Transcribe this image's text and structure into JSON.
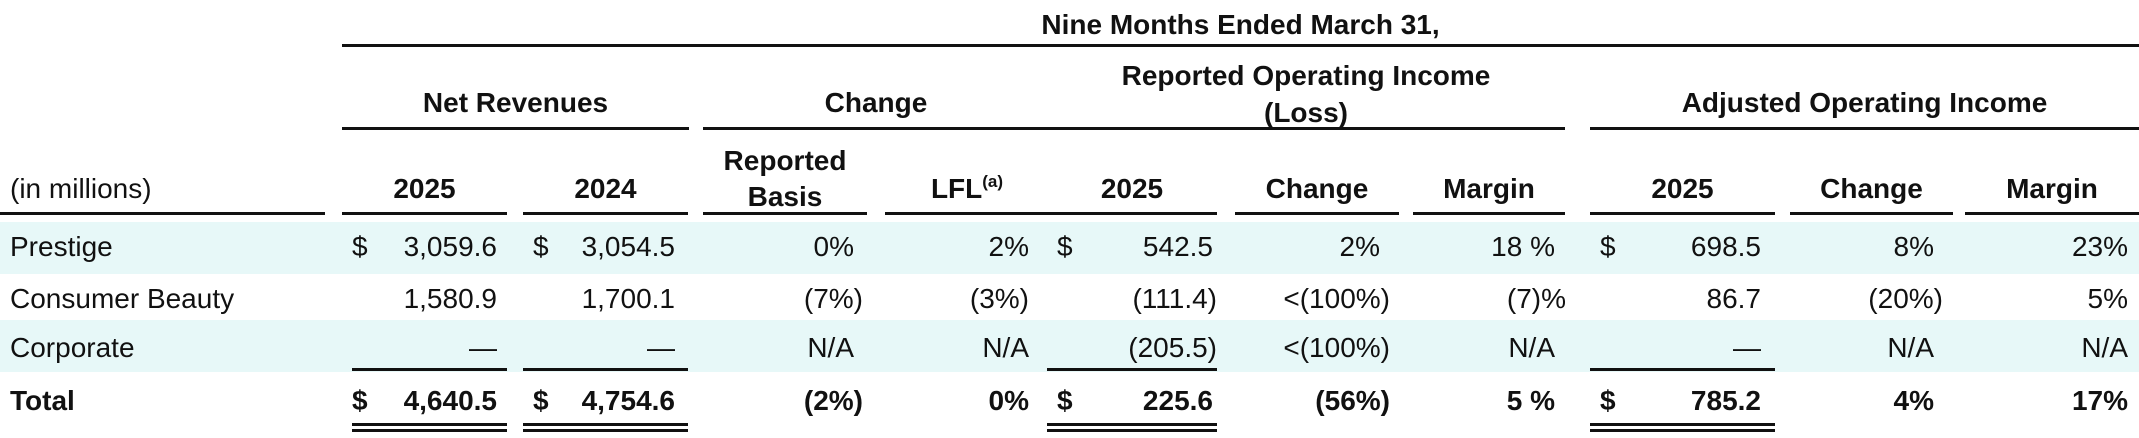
{
  "table": {
    "period": "Nine Months Ended March 31,",
    "groups": {
      "net_revenues": "Net Revenues",
      "change": "Change",
      "reported_oi_l1": "Reported Operating Income",
      "reported_oi_l2": "(Loss)",
      "adjusted_oi": "Adjusted Operating Income"
    },
    "columns": {
      "in_millions": "(in millions)",
      "nr_2025": "2025",
      "nr_2024": "2024",
      "reported_l1": "Reported",
      "reported_l2": "Basis",
      "lfl": "LFL",
      "lfl_note": "(a)",
      "roi_2025": "2025",
      "roi_change": "Change",
      "roi_margin": "Margin",
      "aoi_2025": "2025",
      "aoi_change": "Change",
      "aoi_margin": "Margin"
    },
    "rows": [
      {
        "label": "Prestige",
        "nr_2025_cur": "$",
        "nr_2025": "3,059.6",
        "nr_2024_cur": "$",
        "nr_2024": "3,054.5",
        "reported": "0%",
        "lfl": "2%",
        "roi_cur": "$",
        "roi_2025": "542.5",
        "roi_change": "2%",
        "roi_margin": "18 %",
        "aoi_cur": "$",
        "aoi_2025": "698.5",
        "aoi_change": "8%",
        "aoi_margin": "23%"
      },
      {
        "label": "Consumer Beauty",
        "nr_2025_cur": "",
        "nr_2025": "1,580.9",
        "nr_2024_cur": "",
        "nr_2024": "1,700.1",
        "reported": "(7%)",
        "lfl": "(3%)",
        "roi_cur": "",
        "roi_2025": "(111.4)",
        "roi_change": "<(100%)",
        "roi_margin": "(7)%",
        "aoi_cur": "",
        "aoi_2025": "86.7",
        "aoi_change": "(20%)",
        "aoi_margin": "5%"
      },
      {
        "label": "Corporate",
        "nr_2025_cur": "",
        "nr_2025": "—",
        "nr_2024_cur": "",
        "nr_2024": "—",
        "reported": "N/A",
        "lfl": "N/A",
        "roi_cur": "",
        "roi_2025": "(205.5)",
        "roi_change": "<(100%)",
        "roi_margin": "N/A",
        "aoi_cur": "",
        "aoi_2025": "—",
        "aoi_change": "N/A",
        "aoi_margin": "N/A"
      }
    ],
    "total": {
      "label": "Total",
      "nr_2025_cur": "$",
      "nr_2025": "4,640.5",
      "nr_2024_cur": "$",
      "nr_2024": "4,754.6",
      "reported": "(2%)",
      "lfl": "0%",
      "roi_cur": "$",
      "roi_2025": "225.6",
      "roi_change": "(56%)",
      "roi_margin": "5 %",
      "aoi_cur": "$",
      "aoi_2025": "785.2",
      "aoi_change": "4%",
      "aoi_margin": "17%"
    }
  }
}
